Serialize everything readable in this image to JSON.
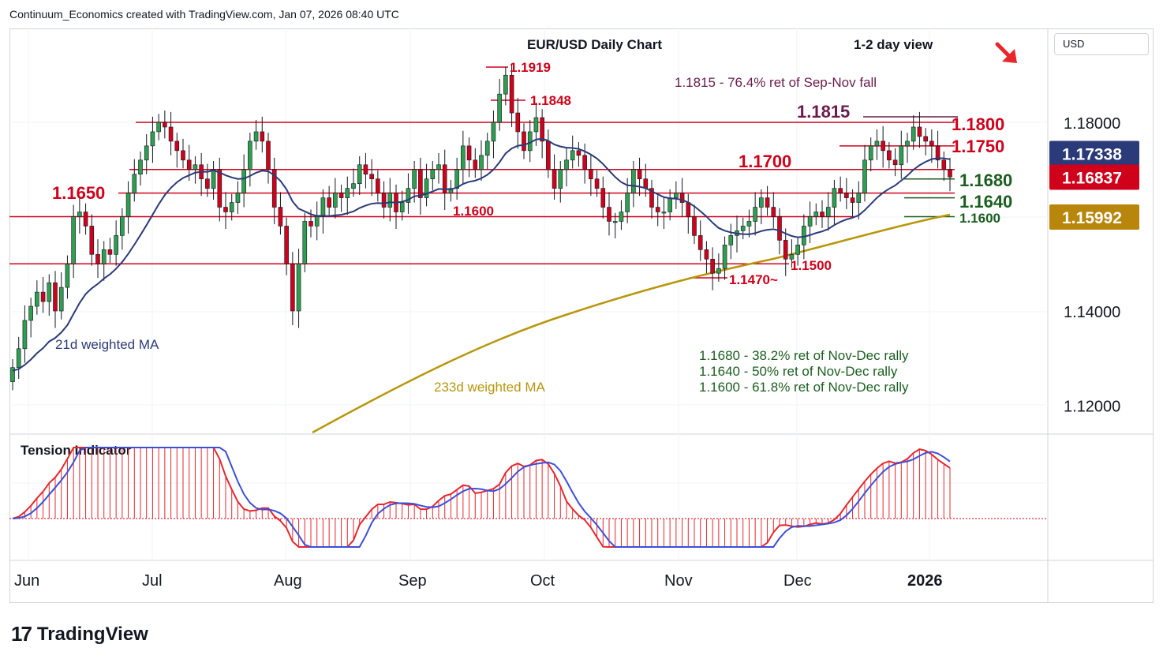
{
  "header": "Continuum_Economics created with TradingView.com, Jan 07, 2026 08:40 UTC",
  "brand": "TradingView",
  "currency": "USD",
  "chart_data": {
    "type": "candlestick",
    "title": "EUR/USD Daily Chart",
    "view": "1-2 day view",
    "y_ticks": [
      {
        "value": 1.18,
        "label": "1.18000"
      },
      {
        "value": 1.14,
        "label": "1.14000"
      },
      {
        "value": 1.12,
        "label": "1.12000"
      }
    ],
    "price_badges": [
      {
        "value": 1.17338,
        "label": "1.17338",
        "color": "#2b3a78"
      },
      {
        "value": 1.16837,
        "label": "1.16837",
        "color": "#d0021b"
      },
      {
        "value": 1.15992,
        "label": "1.15992",
        "color": "#b8860b"
      }
    ],
    "x_labels": [
      "Jun",
      "Jul",
      "Aug",
      "Sep",
      "Oct",
      "Nov",
      "Dec",
      "2026"
    ],
    "levels": [
      {
        "value": 1.18,
        "label": "1.1800"
      },
      {
        "value": 1.175,
        "label": "1.1750"
      },
      {
        "value": 1.17,
        "label": "1.1700"
      },
      {
        "value": 1.165,
        "label": "1.1650"
      },
      {
        "value": 1.16,
        "label": "1.1600"
      },
      {
        "value": 1.15,
        "label": "1.1500"
      }
    ],
    "support_levels": [
      {
        "value": 1.168,
        "label": "1.1680"
      },
      {
        "value": 1.164,
        "label": "1.1640"
      },
      {
        "value": 1.16,
        "label": "1.1600"
      }
    ],
    "peaks": [
      {
        "value": 1.1919,
        "label": "1.1919"
      },
      {
        "value": 1.1848,
        "label": "1.1848"
      },
      {
        "value": 1.1815,
        "label": "1.1815"
      },
      {
        "value": 1.147,
        "label": "1.1470~"
      }
    ],
    "annotations": {
      "resistance_note": "1.1815 - 76.4% ret of Sep-Nov fall",
      "ma21": "21d weighted MA",
      "ma233": "233d weighted MA",
      "notes": [
        "1.1680 - 38.2% ret of Nov-Dec rally",
        "1.1640 - 50% ret of Nov-Dec rally",
        "1.1600 - 61.8% ret of Nov-Dec rally"
      ]
    },
    "indicator_title": "Tension Indicator",
    "closes": [
      1.128,
      1.132,
      1.138,
      1.141,
      1.144,
      1.142,
      1.146,
      1.14,
      1.145,
      1.15,
      1.16,
      1.161,
      1.158,
      1.152,
      1.15,
      1.153,
      1.152,
      1.156,
      1.16,
      1.165,
      1.169,
      1.172,
      1.175,
      1.178,
      1.18,
      1.179,
      1.176,
      1.174,
      1.172,
      1.17,
      1.171,
      1.168,
      1.166,
      1.17,
      1.162,
      1.161,
      1.163,
      1.165,
      1.17,
      1.176,
      1.178,
      1.176,
      1.17,
      1.162,
      1.158,
      1.15,
      1.14,
      1.15,
      1.159,
      1.158,
      1.16,
      1.164,
      1.162,
      1.165,
      1.164,
      1.166,
      1.167,
      1.171,
      1.169,
      1.168,
      1.165,
      1.162,
      1.165,
      1.161,
      1.163,
      1.166,
      1.17,
      1.164,
      1.168,
      1.17,
      1.171,
      1.165,
      1.166,
      1.17,
      1.175,
      1.172,
      1.17,
      1.173,
      1.176,
      1.18,
      1.186,
      1.19,
      1.182,
      1.178,
      1.174,
      1.178,
      1.181,
      1.176,
      1.17,
      1.166,
      1.17,
      1.172,
      1.174,
      1.173,
      1.17,
      1.168,
      1.166,
      1.162,
      1.159,
      1.159,
      1.161,
      1.165,
      1.17,
      1.168,
      1.166,
      1.162,
      1.161,
      1.161,
      1.164,
      1.165,
      1.163,
      1.16,
      1.156,
      1.153,
      1.151,
      1.148,
      1.149,
      1.154,
      1.156,
      1.157,
      1.158,
      1.159,
      1.162,
      1.164,
      1.162,
      1.16,
      1.155,
      1.151,
      1.152,
      1.154,
      1.158,
      1.16,
      1.161,
      1.16,
      1.162,
      1.166,
      1.165,
      1.164,
      1.163,
      1.165,
      1.172,
      1.175,
      1.176,
      1.174,
      1.172,
      1.171,
      1.175,
      1.176,
      1.179,
      1.177,
      1.176,
      1.175,
      1.172,
      1.17,
      1.1684
    ]
  }
}
